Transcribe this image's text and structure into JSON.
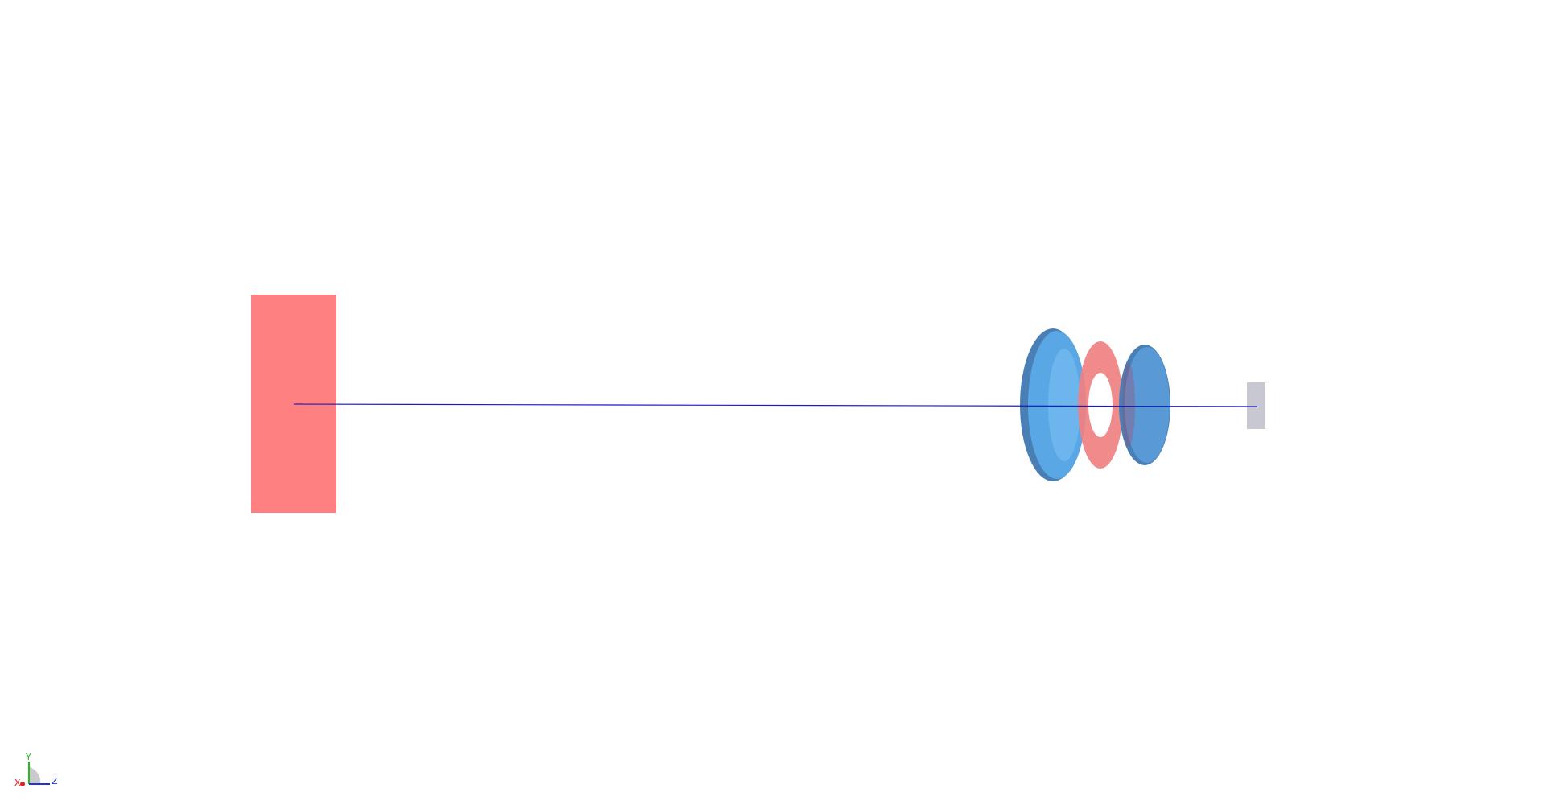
{
  "viewport": {
    "background": "#ffffff"
  },
  "scene": {
    "optical_axis": {
      "color": "#1a1acc"
    },
    "source_object": {
      "color": "#ff8080"
    },
    "lens_1": {
      "color": "#5aa7e6",
      "edge_color": "#4a7fb5"
    },
    "aperture_stop": {
      "color": "#f08080"
    },
    "lens_2": {
      "color": "#5a9bd8",
      "edge_color": "#4a7fb5"
    },
    "detector": {
      "color": "#c7c8d2"
    }
  },
  "axis_triad": {
    "y_label": "Y",
    "x_label": "X",
    "z_label": "Z",
    "y_color": "#22bb22",
    "x_color": "#dd2222",
    "z_color": "#2233dd"
  }
}
